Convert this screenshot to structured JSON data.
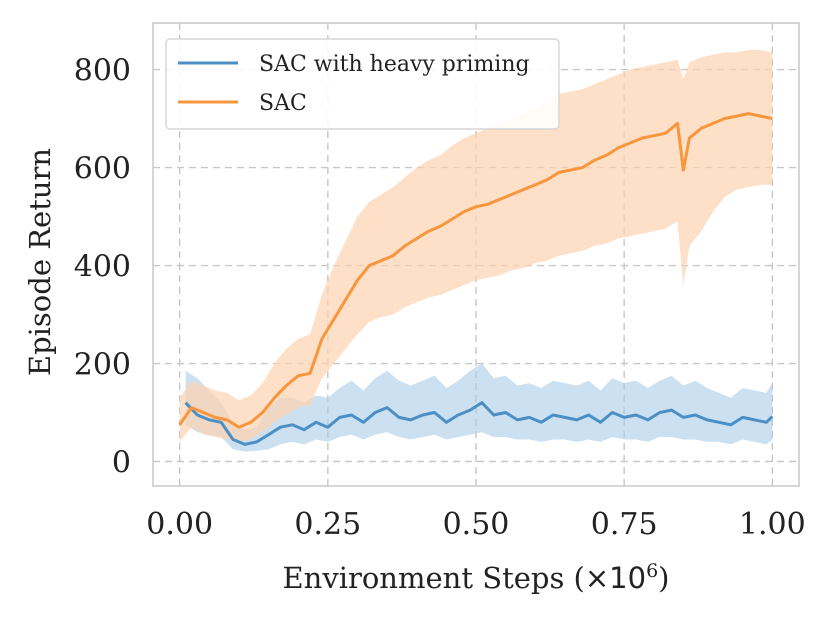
{
  "chart_data": {
    "type": "line",
    "title": "",
    "xlabel_main": "Environment Steps (",
    "xlabel_mult": "×10",
    "xlabel_exp": "6",
    "xlabel_close": ")",
    "ylabel": "Episode Return",
    "xlim": [
      -0.045,
      1.045
    ],
    "ylim": [
      -50,
      895
    ],
    "xticks": [
      0.0,
      0.25,
      0.5,
      0.75,
      1.0
    ],
    "xtick_labels": [
      "0.00",
      "0.25",
      "0.50",
      "0.75",
      "1.00"
    ],
    "yticks": [
      0,
      200,
      400,
      600,
      800
    ],
    "ytick_labels": [
      "0",
      "200",
      "400",
      "600",
      "800"
    ],
    "grid": true,
    "legend_position": "top-left",
    "series": [
      {
        "name": "SAC with heavy priming",
        "color": "#4c8fc4",
        "band_color": "#a9cbe6",
        "x": [
          0.01,
          0.03,
          0.05,
          0.07,
          0.09,
          0.11,
          0.13,
          0.15,
          0.17,
          0.19,
          0.21,
          0.23,
          0.25,
          0.27,
          0.29,
          0.31,
          0.33,
          0.35,
          0.37,
          0.39,
          0.41,
          0.43,
          0.45,
          0.47,
          0.49,
          0.51,
          0.53,
          0.55,
          0.57,
          0.59,
          0.61,
          0.63,
          0.65,
          0.67,
          0.69,
          0.71,
          0.73,
          0.75,
          0.77,
          0.79,
          0.81,
          0.83,
          0.85,
          0.87,
          0.89,
          0.91,
          0.93,
          0.95,
          0.97,
          0.99,
          1.0
        ],
        "values": [
          120,
          95,
          85,
          80,
          45,
          35,
          40,
          55,
          70,
          75,
          65,
          80,
          70,
          90,
          95,
          80,
          100,
          110,
          90,
          85,
          95,
          100,
          80,
          95,
          105,
          120,
          95,
          100,
          85,
          90,
          80,
          95,
          90,
          85,
          95,
          80,
          100,
          90,
          95,
          85,
          100,
          105,
          90,
          95,
          85,
          80,
          75,
          90,
          85,
          80,
          92
        ],
        "lower": [
          75,
          60,
          55,
          50,
          25,
          20,
          22,
          25,
          35,
          40,
          35,
          45,
          40,
          50,
          55,
          45,
          55,
          60,
          50,
          45,
          50,
          55,
          45,
          50,
          55,
          60,
          50,
          50,
          45,
          45,
          40,
          45,
          45,
          40,
          45,
          40,
          50,
          45,
          45,
          40,
          50,
          50,
          45,
          45,
          40,
          40,
          35,
          45,
          40,
          35,
          45
        ],
        "upper": [
          185,
          170,
          145,
          120,
          80,
          65,
          70,
          110,
          130,
          130,
          120,
          135,
          130,
          150,
          165,
          145,
          170,
          185,
          165,
          155,
          165,
          175,
          150,
          165,
          185,
          200,
          170,
          175,
          155,
          160,
          150,
          165,
          160,
          155,
          165,
          145,
          170,
          160,
          165,
          150,
          165,
          175,
          155,
          165,
          150,
          140,
          130,
          150,
          145,
          140,
          160
        ]
      },
      {
        "name": "SAC",
        "color": "#f7963c",
        "band_color": "#fdd3b1",
        "x": [
          0.0,
          0.02,
          0.04,
          0.06,
          0.08,
          0.1,
          0.12,
          0.14,
          0.16,
          0.18,
          0.2,
          0.22,
          0.24,
          0.26,
          0.28,
          0.3,
          0.32,
          0.34,
          0.36,
          0.38,
          0.4,
          0.42,
          0.44,
          0.46,
          0.48,
          0.5,
          0.52,
          0.54,
          0.56,
          0.58,
          0.6,
          0.62,
          0.64,
          0.66,
          0.68,
          0.7,
          0.72,
          0.74,
          0.76,
          0.78,
          0.8,
          0.82,
          0.84,
          0.85,
          0.86,
          0.88,
          0.9,
          0.92,
          0.94,
          0.96,
          0.98,
          1.0
        ],
        "values": [
          75,
          110,
          100,
          90,
          85,
          70,
          80,
          100,
          130,
          155,
          175,
          180,
          250,
          290,
          330,
          370,
          400,
          410,
          420,
          440,
          455,
          470,
          480,
          495,
          510,
          520,
          525,
          535,
          545,
          555,
          565,
          575,
          590,
          595,
          600,
          615,
          625,
          640,
          650,
          660,
          665,
          670,
          690,
          595,
          660,
          680,
          690,
          700,
          705,
          710,
          705,
          700
        ],
        "lower": [
          40,
          70,
          55,
          50,
          45,
          40,
          45,
          60,
          80,
          95,
          110,
          115,
          170,
          200,
          230,
          260,
          285,
          295,
          300,
          315,
          325,
          335,
          340,
          350,
          360,
          370,
          375,
          380,
          390,
          395,
          405,
          410,
          420,
          425,
          430,
          440,
          445,
          455,
          460,
          465,
          470,
          475,
          490,
          360,
          440,
          470,
          510,
          540,
          555,
          560,
          565,
          565
        ],
        "upper": [
          130,
          165,
          155,
          145,
          140,
          125,
          135,
          160,
          200,
          230,
          250,
          260,
          340,
          400,
          450,
          500,
          530,
          545,
          560,
          580,
          600,
          615,
          625,
          645,
          660,
          670,
          680,
          690,
          700,
          710,
          720,
          735,
          750,
          755,
          760,
          770,
          780,
          790,
          800,
          805,
          810,
          815,
          820,
          780,
          815,
          825,
          830,
          835,
          835,
          840,
          840,
          835
        ]
      }
    ]
  }
}
